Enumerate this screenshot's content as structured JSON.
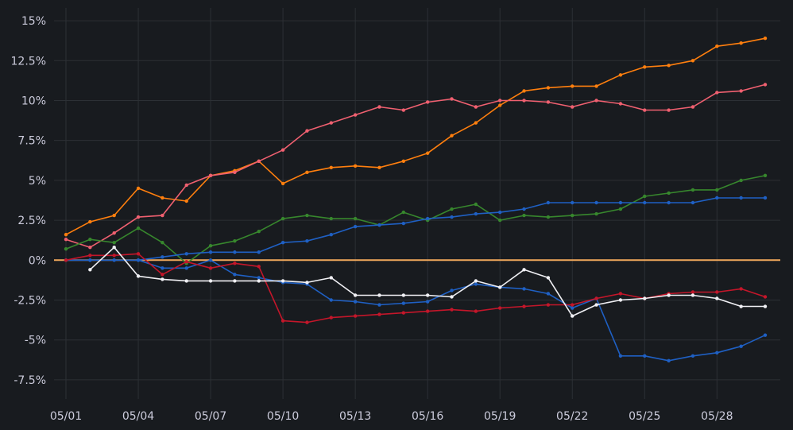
{
  "chart_data": {
    "type": "line",
    "background": "#181b1f",
    "grid": true,
    "legend": "none",
    "x": [
      "05/01",
      "05/02",
      "05/03",
      "05/04",
      "05/05",
      "05/06",
      "05/07",
      "05/08",
      "05/09",
      "05/10",
      "05/11",
      "05/12",
      "05/13",
      "05/14",
      "05/15",
      "05/16",
      "05/17",
      "05/18",
      "05/19",
      "05/20",
      "05/21",
      "05/22",
      "05/23",
      "05/24",
      "05/25",
      "05/26",
      "05/27",
      "05/28",
      "05/29",
      "05/30"
    ],
    "x_tick_labels": [
      "05/01",
      "05/04",
      "05/07",
      "05/10",
      "05/13",
      "05/16",
      "05/19",
      "05/22",
      "05/25",
      "05/28"
    ],
    "y_tick_labels": [
      "15%",
      "12.5%",
      "10%",
      "7.5%",
      "5%",
      "2.5%",
      "0%",
      "-2.5%",
      "-5%",
      "-7.5%"
    ],
    "y_ticks": [
      15,
      12.5,
      10,
      7.5,
      5,
      2.5,
      0,
      -2.5,
      -5,
      -7.5
    ],
    "ylim": [
      -8.5,
      15.8
    ],
    "zero_line_color": "#f2a95c",
    "series": [
      {
        "color": "#ff7f0e",
        "values": [
          1.6,
          2.4,
          2.8,
          4.5,
          3.9,
          3.7,
          5.3,
          5.6,
          6.2,
          4.8,
          5.5,
          5.8,
          5.9,
          5.8,
          6.2,
          6.7,
          7.8,
          8.6,
          9.7,
          10.6,
          10.8,
          10.9,
          10.9,
          11.6,
          12.1,
          12.2,
          12.5,
          13.4,
          13.6,
          13.9
        ]
      },
      {
        "color": "#f06070",
        "values": [
          1.3,
          0.8,
          1.7,
          2.7,
          2.8,
          4.7,
          5.3,
          5.5,
          6.2,
          6.9,
          8.1,
          8.6,
          9.1,
          9.6,
          9.4,
          9.9,
          10.1,
          9.6,
          10.0,
          10.0,
          9.9,
          9.6,
          10.0,
          9.8,
          9.4,
          9.4,
          9.6,
          10.5,
          10.6,
          11.0
        ]
      },
      {
        "color": "#37872d",
        "values": [
          0.7,
          1.3,
          1.1,
          2.0,
          1.1,
          -0.2,
          0.9,
          1.2,
          1.8,
          2.6,
          2.8,
          2.6,
          2.6,
          2.2,
          3.0,
          2.5,
          3.2,
          3.5,
          2.5,
          2.8,
          2.7,
          2.8,
          2.9,
          3.2,
          4.0,
          4.2,
          4.4,
          4.4,
          5.0,
          5.3
        ]
      },
      {
        "color": "#1f60c4",
        "values": [
          0.0,
          0.0,
          0.0,
          0.0,
          -0.5,
          -0.5,
          0.0,
          -0.9,
          -1.1,
          -1.4,
          -1.5,
          -2.5,
          -2.6,
          -2.8,
          -2.7,
          -2.6,
          -1.9,
          -1.5,
          -1.7,
          -1.8,
          -2.1,
          -3.0,
          -2.4,
          -6.0,
          -6.0,
          -6.3,
          -6.0,
          -5.8,
          -5.4,
          -4.7
        ]
      },
      {
        "color": "#1f60c4",
        "values": [
          0.0,
          0.0,
          0.0,
          0.0,
          0.2,
          0.4,
          0.5,
          0.5,
          0.5,
          1.1,
          1.2,
          1.6,
          2.1,
          2.2,
          2.3,
          2.6,
          2.7,
          2.9,
          3.0,
          3.2,
          3.6,
          3.6,
          3.6,
          3.6,
          3.6,
          3.6,
          3.6,
          3.9,
          3.9,
          3.9
        ]
      },
      {
        "color": "#c4162a",
        "values": [
          0.0,
          0.3,
          0.3,
          0.4,
          -0.9,
          -0.1,
          -0.5,
          -0.2,
          -0.4,
          -3.8,
          -3.9,
          -3.6,
          -3.5,
          -3.4,
          -3.3,
          -3.2,
          -3.1,
          -3.2,
          -3.0,
          -2.9,
          -2.8,
          -2.8,
          -2.4,
          -2.1,
          -2.4,
          -2.1,
          -2.0,
          -2.0,
          -1.8,
          -2.3
        ]
      },
      {
        "color": "#f0f0f4",
        "values": [
          null,
          -0.6,
          0.8,
          -1.0,
          -1.2,
          -1.3,
          -1.3,
          -1.3,
          -1.3,
          -1.3,
          -1.4,
          -1.1,
          -2.2,
          -2.2,
          -2.2,
          -2.2,
          -2.3,
          -1.3,
          -1.7,
          -0.6,
          -1.1,
          -3.5,
          -2.8,
          -2.5,
          -2.4,
          -2.2,
          -2.2,
          -2.4,
          -2.9,
          -2.9
        ]
      }
    ]
  }
}
